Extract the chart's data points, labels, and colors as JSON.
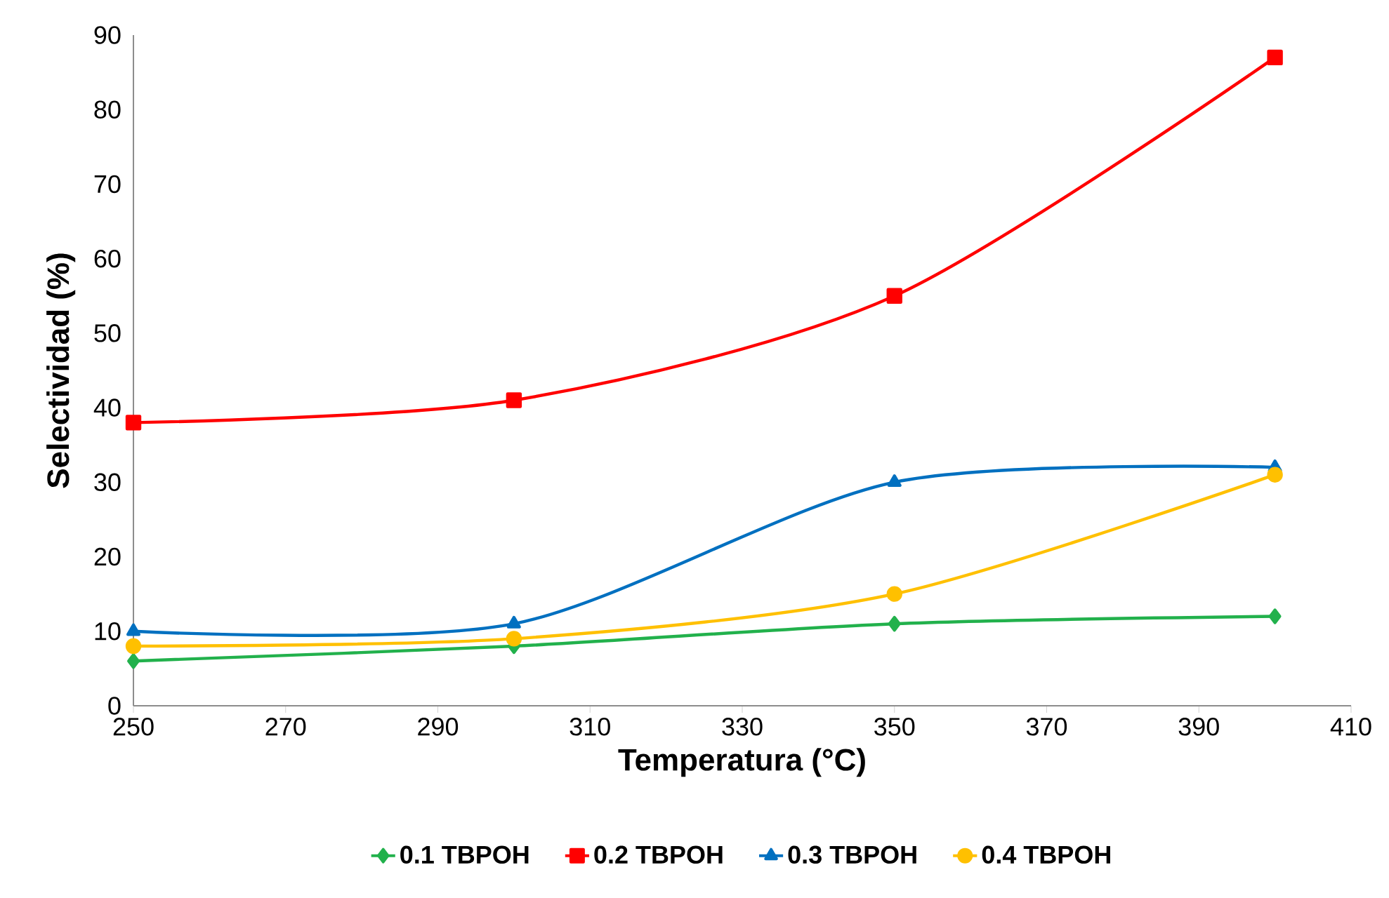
{
  "chart_data": {
    "type": "line",
    "xlabel": "Temperatura (°C)",
    "ylabel": "Selectividad (%)",
    "x": [
      250,
      300,
      350,
      400
    ],
    "series": [
      {
        "name": "0.1 TBPOH",
        "color": "#22b14c",
        "marker": "diamond",
        "values": [
          6,
          8,
          11,
          12
        ]
      },
      {
        "name": "0.2 TBPOH",
        "color": "#ff0000",
        "marker": "square",
        "values": [
          38,
          41,
          55,
          87
        ]
      },
      {
        "name": "0.3 TBPOH",
        "color": "#0070c0",
        "marker": "triangle",
        "values": [
          10,
          11,
          30,
          32
        ]
      },
      {
        "name": "0.4 TBPOH",
        "color": "#ffc000",
        "marker": "circle",
        "values": [
          8,
          9,
          15,
          31
        ]
      }
    ],
    "xlim": [
      250,
      410
    ],
    "xticks": [
      250,
      270,
      290,
      310,
      330,
      350,
      370,
      390,
      410
    ],
    "ylim": [
      0,
      90
    ],
    "yticks": [
      0,
      10,
      20,
      30,
      40,
      50,
      60,
      70,
      80,
      90
    ],
    "grid": false,
    "legend": "bottom"
  }
}
